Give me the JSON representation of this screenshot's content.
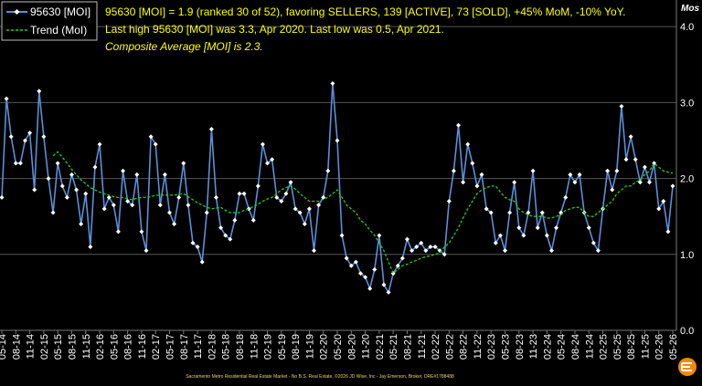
{
  "chart_data": {
    "type": "line",
    "annotations": [
      "95630 [MOI] = 1.9 (ranked 30 of 52), favoring SELLERS, 139 [ACTIVE], 73 [SOLD], +45% MoM, -10% YoY.",
      "Last high 95630 [MOI] was 3.3, Apr 2020. Last low was 0.5, Apr 2021.",
      "Composite Average [MOI] is 2.3."
    ],
    "y_label": "Mos",
    "footer": "Sacramento Metro Residential Real Estate Market - No B.S. Real Estate, ©2026 JD Wise, Inc - Jay Emerson, Broker, DRE#1788488",
    "categories": [
      "05-14",
      null,
      null,
      "08-14",
      null,
      null,
      "11-14",
      null,
      null,
      "02-15",
      null,
      null,
      "05-15",
      null,
      null,
      "08-15",
      null,
      null,
      "11-15",
      null,
      null,
      "02-16",
      null,
      null,
      "05-16",
      null,
      null,
      "08-16",
      null,
      null,
      "11-16",
      null,
      null,
      "02-17",
      null,
      null,
      "05-17",
      null,
      null,
      "08-17",
      null,
      null,
      "11-17",
      null,
      null,
      "02-18",
      null,
      null,
      "05-18",
      null,
      null,
      "08-18",
      null,
      null,
      "11-18",
      null,
      null,
      "02-19",
      null,
      null,
      "05-19",
      null,
      null,
      "08-19",
      null,
      null,
      "11-19",
      null,
      null,
      "02-20",
      null,
      null,
      "05-20",
      null,
      null,
      "08-20",
      null,
      null,
      "11-20",
      null,
      null,
      "02-21",
      null,
      null,
      "05-21",
      null,
      null,
      "08-21",
      null,
      null,
      "11-21",
      null,
      null,
      "02-22",
      null,
      null,
      "05-22",
      null,
      null,
      "08-22",
      null,
      null,
      "11-22",
      null,
      null,
      "02-23",
      null,
      null,
      "05-23",
      null,
      null,
      "08-23",
      null,
      null,
      "11-23",
      null,
      null,
      "02-24",
      null,
      null,
      "05-24",
      null,
      null,
      "08-24",
      null,
      null,
      "11-24",
      null,
      null,
      "02-25",
      null,
      null,
      "05-25",
      null,
      null,
      "08-25",
      null,
      null,
      "11-25",
      null,
      null,
      "02-26",
      null,
      null,
      "05-26"
    ],
    "series": [
      {
        "name": "95630 [MOI]",
        "color": "#5b8fd6",
        "marker": "diamond",
        "values": [
          1.75,
          3.05,
          2.55,
          2.2,
          2.2,
          2.5,
          2.6,
          1.85,
          3.15,
          2.55,
          2.0,
          1.55,
          2.2,
          1.9,
          1.75,
          2.05,
          1.85,
          1.4,
          1.8,
          1.1,
          2.15,
          2.45,
          1.6,
          1.75,
          1.65,
          1.3,
          2.1,
          1.7,
          1.65,
          2.05,
          1.3,
          1.05,
          2.55,
          2.45,
          1.65,
          2.05,
          1.55,
          1.4,
          1.75,
          2.2,
          1.65,
          1.15,
          1.1,
          0.9,
          1.55,
          2.65,
          1.75,
          1.35,
          1.25,
          1.2,
          1.45,
          1.8,
          1.8,
          1.6,
          1.45,
          1.9,
          2.45,
          2.2,
          2.25,
          1.75,
          1.7,
          1.8,
          1.95,
          1.6,
          1.55,
          1.4,
          1.6,
          1.05,
          1.65,
          1.75,
          2.1,
          3.25,
          2.5,
          1.25,
          0.95,
          0.85,
          0.9,
          0.75,
          0.7,
          0.55,
          0.8,
          1.25,
          0.6,
          0.5,
          0.75,
          0.85,
          0.95,
          1.2,
          1.05,
          1.1,
          1.15,
          1.05,
          1.1,
          1.1,
          1.05,
          1.0,
          1.7,
          2.1,
          2.7,
          1.95,
          2.45,
          2.2,
          1.9,
          2.05,
          1.6,
          1.55,
          1.15,
          1.25,
          1.05,
          1.55,
          1.95,
          1.35,
          1.25,
          1.55,
          2.1,
          1.35,
          1.55,
          1.25,
          1.05,
          1.35,
          1.55,
          1.75,
          2.05,
          1.95,
          2.05,
          1.55,
          1.35,
          1.15,
          1.05,
          1.6,
          2.1,
          1.85,
          2.1,
          2.95,
          2.25,
          2.55,
          2.25,
          1.95,
          2.15,
          1.95,
          2.2,
          1.6,
          1.7,
          1.3,
          1.9
        ]
      },
      {
        "name": "Trend (MoI)",
        "color": "#22cc22",
        "dashed": true,
        "values": [
          null,
          null,
          null,
          null,
          null,
          null,
          null,
          null,
          null,
          null,
          null,
          2.3,
          2.35,
          2.28,
          2.2,
          2.12,
          2.05,
          1.98,
          1.93,
          1.88,
          1.85,
          1.82,
          1.8,
          1.78,
          1.76,
          1.75,
          1.75,
          1.73,
          1.72,
          1.74,
          1.75,
          1.75,
          1.76,
          1.78,
          1.78,
          1.78,
          1.78,
          1.78,
          1.79,
          1.8,
          1.76,
          1.72,
          1.68,
          1.65,
          1.62,
          1.6,
          1.61,
          1.62,
          1.58,
          1.55,
          1.55,
          1.55,
          1.58,
          1.6,
          1.63,
          1.66,
          1.7,
          1.73,
          1.75,
          1.8,
          1.85,
          1.88,
          1.9,
          1.86,
          1.8,
          1.75,
          1.7,
          1.7,
          1.7,
          1.73,
          1.75,
          1.8,
          1.85,
          1.75,
          1.65,
          1.6,
          1.55,
          1.45,
          1.4,
          1.32,
          1.25,
          1.15,
          1.05,
          0.9,
          0.75,
          0.8,
          0.85,
          0.87,
          0.9,
          0.92,
          0.95,
          0.97,
          0.98,
          1.0,
          1.02,
          1.1,
          1.15,
          1.25,
          1.35,
          1.48,
          1.6,
          1.7,
          1.8,
          1.85,
          1.88,
          1.9,
          1.9,
          1.82,
          1.75,
          1.72,
          1.7,
          1.6,
          1.55,
          1.52,
          1.5,
          1.5,
          1.5,
          1.48,
          1.48,
          1.5,
          1.52,
          1.58,
          1.6,
          1.62,
          1.62,
          1.55,
          1.5,
          1.5,
          1.55,
          1.6,
          1.65,
          1.7,
          1.8,
          1.85,
          1.9,
          1.9,
          1.95,
          1.98,
          2.05,
          2.1,
          2.2,
          2.15,
          2.1,
          2.08,
          2.07
        ]
      }
    ],
    "ylim": [
      0,
      4.35
    ],
    "yticks": [
      {
        "value": 0,
        "label": "0.0"
      },
      {
        "value": 1,
        "label": "1.0"
      },
      {
        "value": 2,
        "label": "2.0"
      },
      {
        "value": 3,
        "label": "3.0"
      },
      {
        "value": 4,
        "label": "4.0"
      }
    ],
    "grid": true,
    "legend": "top-left"
  }
}
